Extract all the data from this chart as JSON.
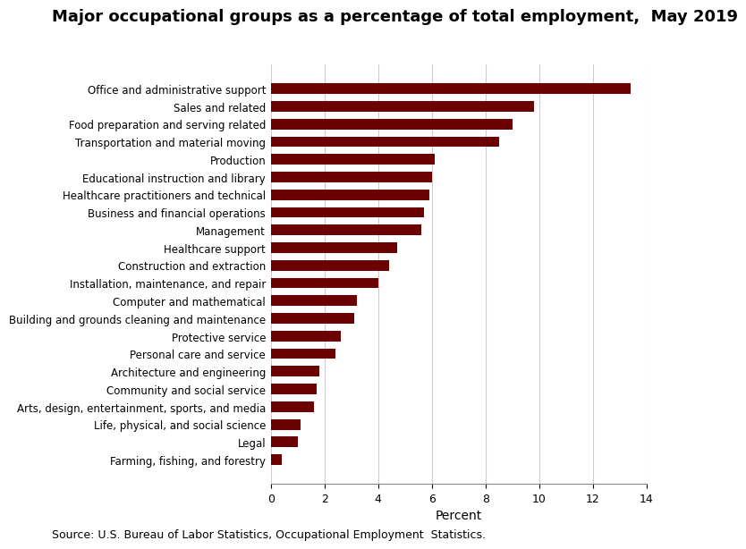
{
  "title": "Major occupational groups as a percentage of total employment,  May 2019",
  "categories": [
    "Office and administrative support",
    "Sales and related",
    "Food preparation and serving related",
    "Transportation and material moving",
    "Production",
    "Educational instruction and library",
    "Healthcare practitioners and technical",
    "Business and financial operations",
    "Management",
    "Healthcare support",
    "Construction and extraction",
    "Installation, maintenance, and repair",
    "Computer and mathematical",
    "Building and grounds cleaning and maintenance",
    "Protective service",
    "Personal care and service",
    "Architecture and engineering",
    "Community and social service",
    "Arts, design, entertainment, sports, and media",
    "Life, physical, and social science",
    "Legal",
    "Farming, fishing, and forestry"
  ],
  "values": [
    13.4,
    9.8,
    9.0,
    8.5,
    6.1,
    6.0,
    5.9,
    5.7,
    5.6,
    4.7,
    4.4,
    4.0,
    3.2,
    3.1,
    2.6,
    2.4,
    1.8,
    1.7,
    1.6,
    1.1,
    1.0,
    0.4
  ],
  "bar_color": "#6B0000",
  "xlabel": "Percent",
  "xlim": [
    0,
    14
  ],
  "xticks": [
    0,
    2,
    4,
    6,
    8,
    10,
    12,
    14
  ],
  "source_text": "Source: U.S. Bureau of Labor Statistics, Occupational Employment  Statistics.",
  "title_fontsize": 13,
  "label_fontsize": 8.5,
  "tick_fontsize": 9,
  "source_fontsize": 9,
  "xlabel_fontsize": 10,
  "background_color": "#ffffff"
}
